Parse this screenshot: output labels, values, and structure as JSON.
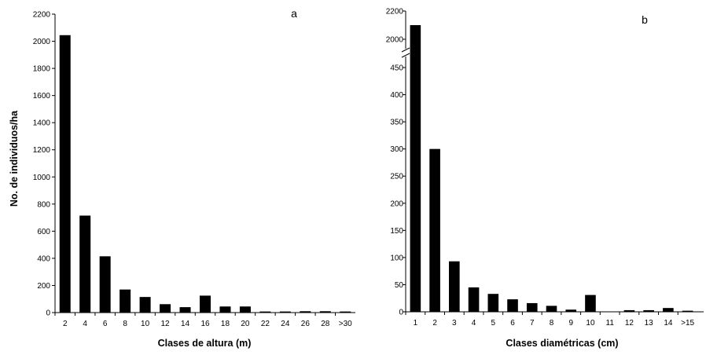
{
  "chart_data": [
    {
      "type": "bar",
      "panel_label": "a",
      "xlabel": "Clases de altura (m)",
      "ylabel": "No. de individuos/ha",
      "ylim": [
        0,
        2200
      ],
      "yticks": [
        "0",
        "200",
        "400",
        "600",
        "800",
        "1000",
        "1200",
        "1400",
        "1600",
        "1800",
        "2000",
        "2200"
      ],
      "categories": [
        "2",
        "4",
        "6",
        "8",
        "10",
        "12",
        "14",
        "16",
        "18",
        "20",
        "22",
        "24",
        "26",
        "28",
        ">30"
      ],
      "values": [
        2045,
        715,
        415,
        170,
        115,
        62,
        40,
        125,
        45,
        45,
        8,
        8,
        10,
        10,
        8
      ],
      "grid": false,
      "legend": "none"
    },
    {
      "type": "bar",
      "panel_label": "b",
      "xlabel": "Clases diamétricas (cm)",
      "ylabel": "",
      "axis_break": "between 450 and 2000",
      "ylim_lower": [
        0,
        500
      ],
      "ylim_upper": [
        2000,
        2200
      ],
      "yticks": [
        "0",
        "50",
        "100",
        "150",
        "200",
        "250",
        "300",
        "350",
        "400",
        "450",
        "2000",
        "2200"
      ],
      "categories": [
        "1",
        "2",
        "3",
        "4",
        "5",
        "6",
        "7",
        "8",
        "9",
        "10",
        "11",
        "12",
        "13",
        "14",
        ">15"
      ],
      "values": [
        2100,
        300,
        93,
        45,
        33,
        23,
        16,
        11,
        4,
        31,
        0,
        3,
        3,
        7,
        2
      ],
      "grid": false,
      "legend": "none"
    }
  ]
}
